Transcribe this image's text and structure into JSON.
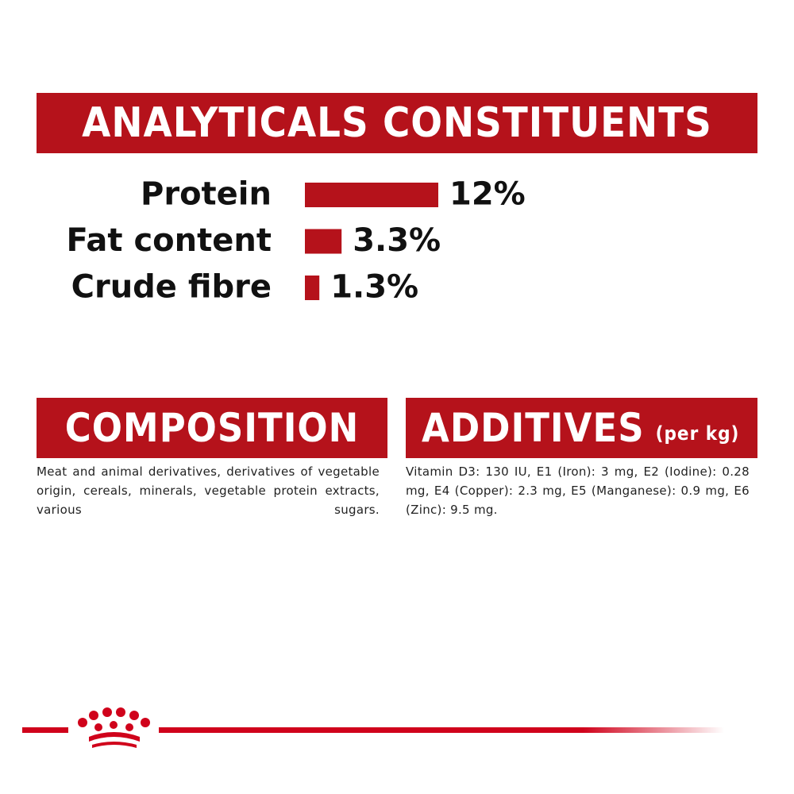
{
  "chart_data": {
    "type": "bar",
    "title": "ANALYTICALS CONSTITUENTS",
    "categories": [
      "Protein",
      "Fat content",
      "Crude fibre"
    ],
    "values": [
      12,
      3.3,
      1.3
    ],
    "value_labels": [
      "12%",
      "3.3%",
      "1.3%"
    ],
    "color": "#b5121b"
  },
  "composition": {
    "title": "COMPOSITION",
    "text": "Meat and animal derivatives, derivatives of vegetable origin, cereals, minerals, vegetable protein extracts, various sugars."
  },
  "additives": {
    "title": "ADDITIVES",
    "unit": "(per kg)",
    "text": "Vitamin D3: 130 IU, E1 (Iron): 3 mg, E2 (Iodine): 0.28 mg, E4 (Copper): 2.3 mg, E5 (Manganese): 0.9 mg, E6 (Zinc): 9.5 mg."
  }
}
